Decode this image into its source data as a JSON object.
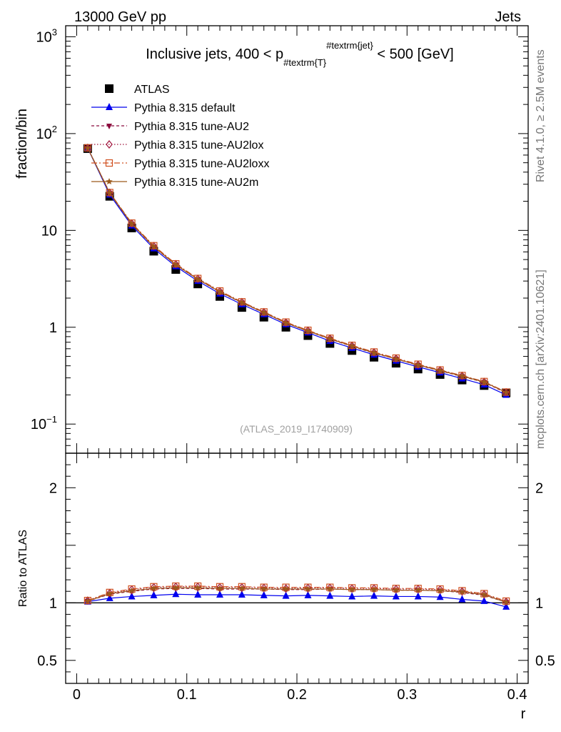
{
  "header": {
    "energy_label": "13000 GeV pp",
    "process_label": "Jets",
    "rivet_label": "Rivet 4.1.0, ≥ 2.5M events",
    "source_label": "mcplots.cern.ch [arXiv:2401.10621]",
    "analysis_label": "(ATLAS_2019_I1740909)"
  },
  "colors": {
    "atlas": "#000000",
    "default": "#0000ee",
    "au2": "#8b0a3c",
    "au2lox": "#a0143c",
    "au2loxx": "#d05020",
    "au2m": "#9c5a1c"
  },
  "chart_data": [
    {
      "type": "line",
      "title": "Inclusive jets, 400 < p_{#textrm{T}}^{#textrm{jet}} < 500 [GeV]",
      "title_parts": {
        "pre": "Inclusive jets, 400 < p",
        "sub": "#textrm{T}",
        "sup": "#textrm{jet}",
        "post": " < 500 [GeV]"
      },
      "ylabel": "fraction/bin",
      "yscale": "log",
      "ylim": [
        0.05,
        1300
      ],
      "xlim": [
        -0.01,
        0.41
      ],
      "yticks": [
        {
          "value": 1000,
          "base": "10",
          "exp": "3"
        },
        {
          "value": 100,
          "base": "10",
          "exp": "2"
        },
        {
          "value": 10,
          "base": "10",
          "exp": ""
        },
        {
          "value": 1,
          "base": "1",
          "exp": ""
        },
        {
          "value": 0.1,
          "base": "10",
          "exp": "−1"
        }
      ],
      "x": [
        0.01,
        0.03,
        0.05,
        0.07,
        0.09,
        0.11,
        0.13,
        0.15,
        0.17,
        0.19,
        0.21,
        0.23,
        0.25,
        0.27,
        0.29,
        0.31,
        0.33,
        0.35,
        0.37,
        0.39
      ],
      "series": [
        {
          "name": "ATLAS",
          "key": "atlas",
          "marker": "square",
          "dash": "none",
          "values": [
            70,
            22.5,
            10.6,
            6.1,
            3.95,
            2.8,
            2.08,
            1.6,
            1.27,
            1.0,
            0.82,
            0.68,
            0.575,
            0.49,
            0.425,
            0.37,
            0.325,
            0.285,
            0.25,
            0.21
          ]
        },
        {
          "name": "Pythia 8.315 default",
          "key": "default",
          "marker": "triangle",
          "dash": "none",
          "values": [
            70.7,
            23.4,
            11.2,
            6.5,
            4.25,
            3.0,
            2.22,
            1.72,
            1.36,
            1.07,
            0.88,
            0.72,
            0.61,
            0.52,
            0.45,
            0.39,
            0.34,
            0.295,
            0.255,
            0.2
          ]
        },
        {
          "name": "Pythia 8.315 tune-AU2",
          "key": "au2",
          "marker": "triangle-down",
          "dash": "4,3",
          "values": [
            71.1,
            24.2,
            11.6,
            6.75,
            4.4,
            3.12,
            2.31,
            1.79,
            1.41,
            1.11,
            0.91,
            0.755,
            0.635,
            0.54,
            0.47,
            0.405,
            0.355,
            0.31,
            0.27,
            0.21
          ]
        },
        {
          "name": "Pythia 8.315 tune-AU2lox",
          "key": "au2lox",
          "marker": "diamond",
          "dash": "1.5,2.5",
          "values": [
            71.3,
            24.5,
            11.8,
            6.9,
            4.48,
            3.17,
            2.35,
            1.82,
            1.43,
            1.12,
            0.925,
            0.765,
            0.645,
            0.55,
            0.475,
            0.41,
            0.36,
            0.315,
            0.273,
            0.213
          ]
        },
        {
          "name": "Pythia 8.315 tune-AU2loxx",
          "key": "au2loxx",
          "marker": "square-open",
          "dash": "8,3,2,3",
          "values": [
            71.3,
            24.6,
            11.9,
            6.95,
            4.52,
            3.19,
            2.37,
            1.83,
            1.44,
            1.13,
            0.93,
            0.77,
            0.65,
            0.555,
            0.48,
            0.415,
            0.362,
            0.317,
            0.275,
            0.214
          ]
        },
        {
          "name": "Pythia 8.315 tune-AU2m",
          "key": "au2m",
          "marker": "star",
          "dash": "none",
          "values": [
            71.0,
            24.3,
            11.7,
            6.8,
            4.42,
            3.13,
            2.32,
            1.8,
            1.42,
            1.11,
            0.915,
            0.76,
            0.64,
            0.545,
            0.47,
            0.408,
            0.357,
            0.313,
            0.272,
            0.212
          ]
        }
      ]
    },
    {
      "type": "line",
      "title": "",
      "ylabel": "Ratio to ATLAS",
      "xlabel": "r",
      "ylim": [
        0.3,
        2.3
      ],
      "xlim": [
        -0.01,
        0.41
      ],
      "yticks": [
        0.5,
        1,
        2
      ],
      "ytick_labels": [
        "0.5",
        "1",
        "2"
      ],
      "xticks": [
        0,
        0.1,
        0.2,
        0.3,
        0.4
      ],
      "xtick_labels": [
        "0",
        "0.1",
        "0.2",
        "0.3",
        "0.4"
      ],
      "reference_line": 1,
      "x": [
        0.01,
        0.03,
        0.05,
        0.07,
        0.09,
        0.11,
        0.13,
        0.15,
        0.17,
        0.19,
        0.21,
        0.23,
        0.25,
        0.27,
        0.29,
        0.31,
        0.33,
        0.35,
        0.37,
        0.39
      ],
      "series": [
        {
          "name": "Pythia 8.315 default",
          "key": "default",
          "marker": "triangle",
          "dash": "none",
          "values": [
            1.01,
            1.04,
            1.055,
            1.065,
            1.075,
            1.07,
            1.07,
            1.07,
            1.065,
            1.06,
            1.065,
            1.06,
            1.055,
            1.06,
            1.055,
            1.055,
            1.05,
            1.03,
            1.015,
            0.965
          ]
        },
        {
          "name": "Pythia 8.315 tune-AU2",
          "key": "au2",
          "marker": "triangle-down",
          "dash": "4,3",
          "values": [
            1.015,
            1.075,
            1.1,
            1.12,
            1.125,
            1.125,
            1.12,
            1.12,
            1.12,
            1.115,
            1.115,
            1.12,
            1.115,
            1.115,
            1.11,
            1.11,
            1.105,
            1.09,
            1.065,
            1.005
          ]
        },
        {
          "name": "Pythia 8.315 tune-AU2lox",
          "key": "au2lox",
          "marker": "diamond",
          "dash": "1.5,2.5",
          "values": [
            1.02,
            1.085,
            1.115,
            1.135,
            1.14,
            1.14,
            1.135,
            1.135,
            1.13,
            1.125,
            1.13,
            1.13,
            1.125,
            1.125,
            1.12,
            1.12,
            1.115,
            1.1,
            1.075,
            1.01
          ]
        },
        {
          "name": "Pythia 8.315 tune-AU2loxx",
          "key": "au2loxx",
          "marker": "square-open",
          "dash": "8,3,2,3",
          "values": [
            1.02,
            1.09,
            1.12,
            1.14,
            1.145,
            1.145,
            1.14,
            1.14,
            1.135,
            1.135,
            1.135,
            1.135,
            1.13,
            1.13,
            1.125,
            1.125,
            1.12,
            1.105,
            1.08,
            1.015
          ]
        },
        {
          "name": "Pythia 8.315 tune-AU2m",
          "key": "au2m",
          "marker": "star",
          "dash": "none",
          "values": [
            1.015,
            1.08,
            1.105,
            1.125,
            1.13,
            1.13,
            1.125,
            1.125,
            1.12,
            1.12,
            1.12,
            1.12,
            1.115,
            1.115,
            1.11,
            1.11,
            1.105,
            1.095,
            1.07,
            1.005
          ]
        }
      ]
    }
  ]
}
